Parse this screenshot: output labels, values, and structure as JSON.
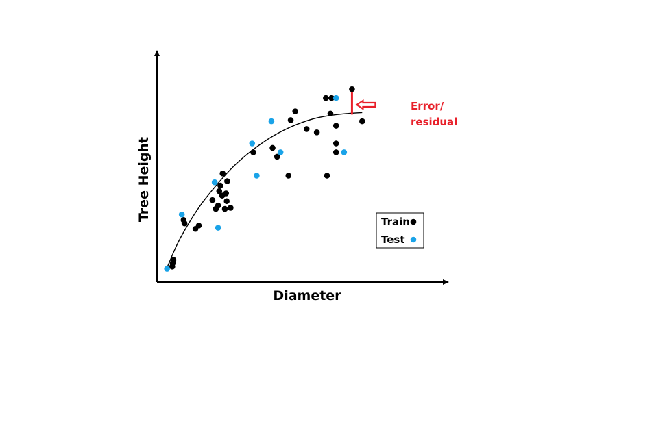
{
  "chart_data": {
    "type": "scatter",
    "title": "",
    "xlabel": "Diameter",
    "ylabel": "Tree Height",
    "xlim": [
      0,
      100
    ],
    "ylim": [
      0,
      100
    ],
    "grid": false,
    "legend_position": "bottom-right",
    "series": [
      {
        "name": "Train",
        "color": "#000000",
        "points": [
          [
            2.8,
            7.0
          ],
          [
            3.0,
            8.5
          ],
          [
            3.3,
            10.0
          ],
          [
            7.8,
            28.0
          ],
          [
            8.2,
            26.5
          ],
          [
            13.0,
            24.0
          ],
          [
            14.5,
            25.5
          ],
          [
            20.5,
            37.0
          ],
          [
            22.0,
            33.0
          ],
          [
            23.0,
            34.5
          ],
          [
            23.5,
            41.0
          ],
          [
            24.0,
            43.5
          ],
          [
            24.8,
            39.0
          ],
          [
            25.0,
            49.0
          ],
          [
            26.5,
            40.0
          ],
          [
            26.8,
            36.5
          ],
          [
            27.0,
            45.5
          ],
          [
            26.0,
            33.0
          ],
          [
            28.5,
            33.5
          ],
          [
            38.5,
            58.5
          ],
          [
            47.0,
            60.5
          ],
          [
            49.0,
            56.5
          ],
          [
            54.0,
            48.0
          ],
          [
            55.0,
            73.0
          ],
          [
            57.0,
            77.0
          ],
          [
            62.0,
            69.0
          ],
          [
            66.5,
            67.5
          ],
          [
            70.5,
            83.0
          ],
          [
            71.0,
            48.0
          ],
          [
            72.5,
            76.0
          ],
          [
            73.0,
            83.0
          ],
          [
            75.0,
            70.5
          ],
          [
            75.0,
            62.5
          ],
          [
            75.0,
            58.5
          ],
          [
            82.0,
            87.0
          ],
          [
            86.5,
            72.5
          ]
        ]
      },
      {
        "name": "Test",
        "color": "#1aa3e8",
        "points": [
          [
            0.5,
            6.0
          ],
          [
            7.0,
            30.5
          ],
          [
            21.5,
            45.0
          ],
          [
            23.0,
            24.5
          ],
          [
            38.0,
            62.5
          ],
          [
            40.0,
            48.0
          ],
          [
            46.5,
            72.5
          ],
          [
            50.5,
            58.5
          ],
          [
            75.0,
            83.0
          ],
          [
            78.5,
            58.5
          ]
        ]
      }
    ],
    "fit_curve": {
      "name": "fitted curve",
      "color": "#000000",
      "x": [
        0.5,
        5,
        10,
        15,
        20,
        25,
        30,
        35,
        40,
        45,
        50,
        55,
        60,
        65,
        70,
        75,
        80,
        86.5
      ],
      "y": [
        6.5,
        17.5,
        26.5,
        34.5,
        41.0,
        47.0,
        52.5,
        57.0,
        61.0,
        64.5,
        67.5,
        70.0,
        72.0,
        73.7,
        74.8,
        75.5,
        76.0,
        76.4
      ]
    },
    "annotation": {
      "text_line1": "Error/",
      "text_line2": "residual",
      "color": "#e8202a",
      "residual_x": 82.0,
      "residual_y_from": 75.5,
      "residual_y_to": 87.0
    },
    "legend_entries": [
      "Train",
      "Test"
    ]
  }
}
